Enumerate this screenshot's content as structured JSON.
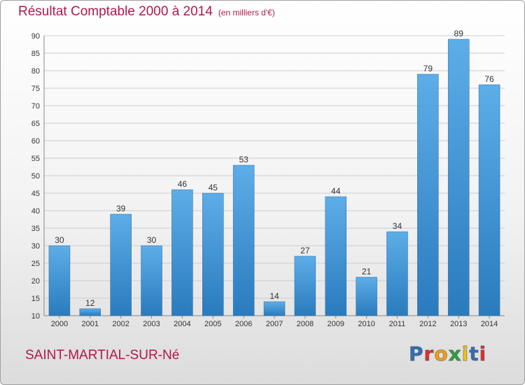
{
  "header": {
    "title": "Résultat Comptable 2000 à 2014",
    "subtitle": "(en milliers d'€)"
  },
  "footer": {
    "commune": "SAINT-MARTIAL-SUR-Né",
    "logo": "Proxiti",
    "logo_colors": [
      "#2e6fb7",
      "#e52d2d",
      "#f39c12",
      "#2e9e3e",
      "#f2c500",
      "#2e6fb7",
      "#e52d2d"
    ]
  },
  "colors": {
    "bar_light": "#5dade8",
    "bar_dark": "#2a7bbd",
    "grid": "#cccccc",
    "title": "#b0184e"
  },
  "chart_data": {
    "type": "bar",
    "title": "Résultat Comptable 2000 à 2014",
    "subtitle": "(en milliers d'€)",
    "categories": [
      "2000",
      "2001",
      "2002",
      "2003",
      "2004",
      "2005",
      "2006",
      "2007",
      "2008",
      "2009",
      "2010",
      "2011",
      "2012",
      "2013",
      "2014"
    ],
    "values": [
      30,
      12,
      39,
      30,
      46,
      45,
      53,
      14,
      27,
      44,
      21,
      34,
      79,
      89,
      76
    ],
    "ylim": [
      10,
      90
    ],
    "yticks": [
      10,
      15,
      20,
      25,
      30,
      35,
      40,
      45,
      50,
      55,
      60,
      65,
      70,
      75,
      80,
      85,
      90
    ],
    "grid": true,
    "data_labels": true
  }
}
